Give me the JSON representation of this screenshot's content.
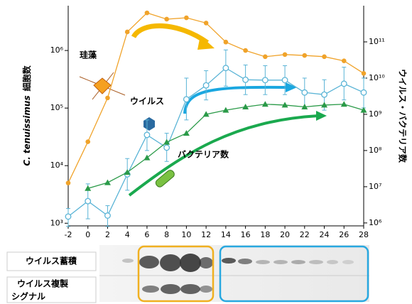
{
  "chart_data": {
    "type": "line",
    "ylabel_species": "C. tenuissimus",
    "ylabel": "細胞数",
    "y2label": "ウイルス・バクテリア数",
    "x": [
      -2,
      0,
      2,
      4,
      6,
      8,
      10,
      12,
      14,
      16,
      18,
      20,
      22,
      24,
      26,
      28
    ],
    "xlim": [
      -2,
      28
    ],
    "xticks": [
      -2,
      0,
      2,
      4,
      6,
      8,
      10,
      12,
      14,
      16,
      18,
      20,
      22,
      24,
      26,
      28
    ],
    "ylim": [
      900,
      6000000
    ],
    "ylog": true,
    "yticks": [
      {
        "value": 1000,
        "label": "10³"
      },
      {
        "value": 10000,
        "label": "10⁴"
      },
      {
        "value": 100000,
        "label": "10⁵"
      },
      {
        "value": 1000000,
        "label": "10⁶"
      }
    ],
    "y2lim": [
      830000,
      1000000000000
    ],
    "y2log": true,
    "y2ticks": [
      {
        "value": 1000000,
        "label": "10⁶"
      },
      {
        "value": 10000000,
        "label": "10⁷"
      },
      {
        "value": 100000000,
        "label": "10⁸"
      },
      {
        "value": 1000000000,
        "label": "10⁹"
      },
      {
        "value": 10000000000,
        "label": "10¹⁰"
      },
      {
        "value": 100000000000,
        "label": "10¹¹"
      }
    ],
    "series": [
      {
        "name": "珪藻",
        "color": "#f0a32a",
        "marker": "circle-filled",
        "axis": "y",
        "values": [
          5000,
          26000,
          150000,
          2100000,
          4500000,
          3500000,
          3700000,
          3000000,
          1400000,
          1000000,
          780000,
          850000,
          820000,
          780000,
          660000,
          400000
        ]
      },
      {
        "name": "ウイルス",
        "color": "#5ab4d6",
        "marker": "circle-open",
        "axis": "y2",
        "values": [
          1500000,
          4000000,
          1600000,
          22000000,
          270000000,
          120000000,
          2600000000,
          6300000000,
          19000000000,
          9000000000,
          8800000000,
          8800000000,
          4000000000,
          3500000000,
          7000000000,
          4000000000
        ],
        "errors_low": [
          800000,
          1300000,
          800000,
          8000000,
          100000000,
          50000000,
          700000000,
          2500000000,
          6000000000,
          3500000000,
          3500000000,
          3500000000,
          1500000000,
          1300000000,
          2500000000,
          1500000000
        ],
        "errors_high": [
          2500000,
          12000000,
          3000000,
          60000000,
          700000000,
          300000000,
          10000000000,
          16000000000,
          60000000000,
          23000000000,
          22000000000,
          22000000000,
          10000000000,
          9000000000,
          20000000000,
          10000000000
        ]
      },
      {
        "name": "バクテリア数",
        "color": "#2a9a48",
        "marker": "triangle",
        "axis": "y2",
        "values": [
          null,
          9000000,
          13000000,
          25000000,
          63000000,
          170000000,
          300000000,
          1000000000,
          1300000000,
          1600000000,
          1900000000,
          1800000000,
          1600000000,
          1800000000,
          1900000000,
          1300000000
        ]
      }
    ],
    "blot_rows": [
      "ウイルス蓄積",
      "ウイルス複製",
      "シグナル"
    ]
  }
}
